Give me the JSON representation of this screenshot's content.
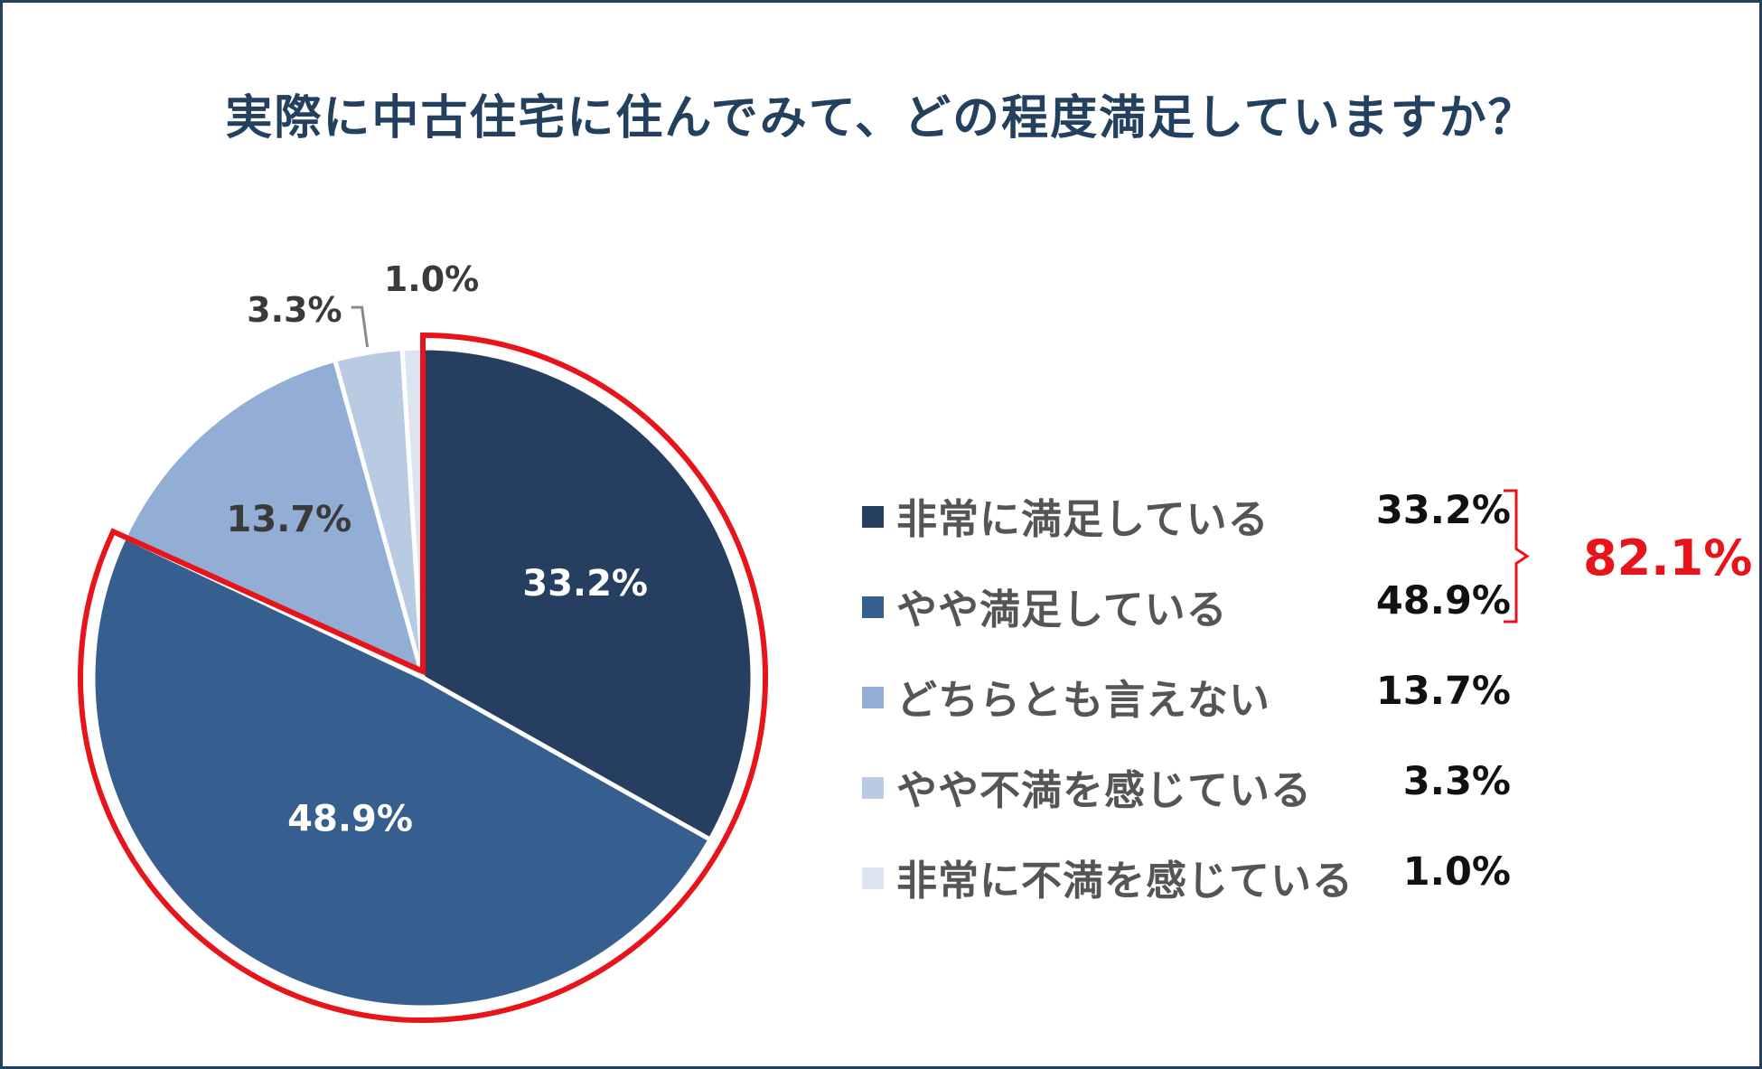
{
  "chart_data": {
    "type": "pie",
    "title": "実際に中古住宅に住んでみて、どの程度満足していますか？",
    "slices": [
      {
        "label": "非常に満足している",
        "value": 33.2,
        "display": "33.2%",
        "color": "#263f60"
      },
      {
        "label": "やや満足している",
        "value": 48.9,
        "display": "48.9%",
        "color": "#365f8f"
      },
      {
        "label": "どちらとも言えない",
        "value": 13.7,
        "display": "13.7%",
        "color": "#93aed4"
      },
      {
        "label": "やや不満を感じている",
        "value": 3.3,
        "display": "3.3%",
        "color": "#b9cbe3"
      },
      {
        "label": "非常に不満を感じている",
        "value": 1.0,
        "display": "1.0%",
        "color": "#dbe4f0"
      }
    ],
    "legend_position": "right",
    "highlight": {
      "slices": [
        "非常に満足している",
        "やや満足している"
      ],
      "total": "82.1%",
      "color": "#e8141b"
    }
  },
  "frame_color": "#24405f"
}
